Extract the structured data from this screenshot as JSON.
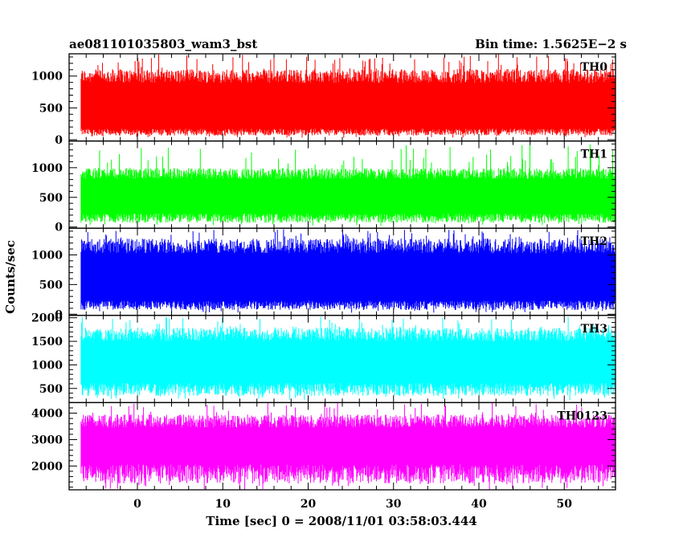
{
  "header": {
    "left": "ae081101035803_wam3_bst",
    "right": "Bin time: 1.5625E−2 s"
  },
  "chart_data": {
    "type": "line",
    "xlabel": "Time [sec] 0 = 2008/11/01 03:58:03.444",
    "ylabel": "Counts/sec",
    "xlim": [
      -8,
      56
    ],
    "x_range_data": [
      -6.6,
      56
    ],
    "bin_time_s": 0.015625,
    "xticks": [
      0,
      10,
      20,
      30,
      40,
      50
    ],
    "panels": [
      {
        "name": "TH0",
        "color": "#ff0000",
        "ylim": [
          -20,
          1350
        ],
        "yticks": [
          0,
          500,
          1000
        ],
        "min": 30,
        "max": 1350,
        "typical_low": 120,
        "typical_high": 1000
      },
      {
        "name": "TH1",
        "color": "#00ff00",
        "ylim": [
          -20,
          1450
        ],
        "yticks": [
          0,
          500,
          1000
        ],
        "min": 20,
        "max": 1400,
        "typical_low": 150,
        "typical_high": 900
      },
      {
        "name": "TH2",
        "color": "#0000ff",
        "ylim": [
          -20,
          1450
        ],
        "yticks": [
          0,
          500,
          1000
        ],
        "min": 20,
        "max": 1450,
        "typical_low": 150,
        "typical_high": 1150
      },
      {
        "name": "TH3",
        "color": "#00ffff",
        "ylim": [
          200,
          2050
        ],
        "yticks": [
          500,
          1000,
          1500,
          2000
        ],
        "min": 250,
        "max": 2050,
        "typical_low": 480,
        "typical_high": 1650
      },
      {
        "name": "TH0123",
        "color": "#ff00ff",
        "ylim": [
          1100,
          4400
        ],
        "yticks": [
          2000,
          3000,
          4000
        ],
        "min": 1100,
        "max": 4400,
        "typical_low": 1700,
        "typical_high": 3700
      }
    ]
  }
}
